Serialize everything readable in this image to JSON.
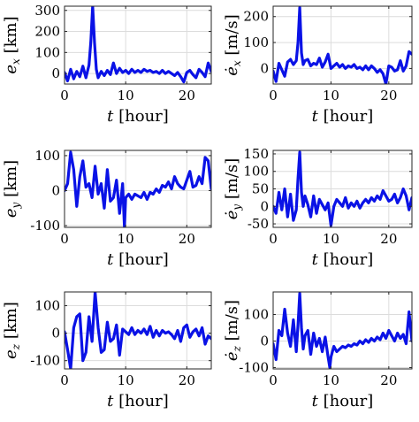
{
  "figure": {
    "line_color": "#0a12e6",
    "panels": [
      {
        "id": "ex",
        "ylabel_sym": "e",
        "ylabel_sub": "x",
        "ylabel_dot": false,
        "ylabel_unit": "[km]",
        "xlabel_sym": "t",
        "xlabel_unit": "[hour]"
      },
      {
        "id": "vx",
        "ylabel_sym": "e",
        "ylabel_sub": "x",
        "ylabel_dot": true,
        "ylabel_unit": "[m/s]",
        "xlabel_sym": "t",
        "xlabel_unit": "[hour]"
      },
      {
        "id": "ey",
        "ylabel_sym": "e",
        "ylabel_sub": "y",
        "ylabel_dot": false,
        "ylabel_unit": "[km]",
        "xlabel_sym": "t",
        "xlabel_unit": "[hour]"
      },
      {
        "id": "vy",
        "ylabel_sym": "e",
        "ylabel_sub": "y",
        "ylabel_dot": true,
        "ylabel_unit": "[m/s]",
        "xlabel_sym": "t",
        "xlabel_unit": "[hour]"
      },
      {
        "id": "ez",
        "ylabel_sym": "e",
        "ylabel_sub": "z",
        "ylabel_dot": false,
        "ylabel_unit": "[km]",
        "xlabel_sym": "t",
        "xlabel_unit": "[hour]"
      },
      {
        "id": "vz",
        "ylabel_sym": "e",
        "ylabel_sub": "z",
        "ylabel_dot": true,
        "ylabel_unit": "[m/s]",
        "xlabel_sym": "t",
        "xlabel_unit": "[hour]"
      }
    ]
  },
  "chart_data": [
    {
      "type": "line",
      "xlabel": "t [hour]",
      "ylabel": "e_x [km]",
      "xlim": [
        0,
        24
      ],
      "ylim": [
        -50,
        320
      ],
      "xticks": [
        0,
        10,
        20
      ],
      "yticks": [
        0,
        100,
        200,
        300
      ],
      "grid": true,
      "x": [
        0,
        0.5,
        1,
        1.5,
        2,
        2.5,
        3,
        3.5,
        4,
        4.3,
        4.6,
        4.9,
        5.2,
        5.5,
        6,
        6.5,
        7,
        7.5,
        8,
        8.5,
        9,
        9.5,
        10,
        10.5,
        11,
        11.5,
        12,
        12.5,
        13,
        13.5,
        14,
        14.5,
        15,
        15.5,
        16,
        16.5,
        17,
        17.5,
        18,
        18.5,
        19,
        19.5,
        20,
        20.5,
        21,
        21.5,
        22,
        22.5,
        23,
        23.5,
        24
      ],
      "y": [
        5,
        -35,
        20,
        -25,
        10,
        -15,
        35,
        -20,
        40,
        150,
        320,
        150,
        20,
        -20,
        10,
        -10,
        15,
        -5,
        50,
        0,
        25,
        5,
        15,
        0,
        20,
        5,
        15,
        5,
        20,
        10,
        15,
        5,
        10,
        0,
        15,
        0,
        10,
        0,
        -10,
        5,
        -15,
        -40,
        5,
        15,
        -5,
        -20,
        20,
        5,
        -15,
        50,
        10
      ]
    },
    {
      "type": "line",
      "xlabel": "t [hour]",
      "ylabel": "ė_x [m/s]",
      "xlim": [
        0,
        24
      ],
      "ylim": [
        -60,
        240
      ],
      "xticks": [
        0,
        10,
        20
      ],
      "yticks": [
        0,
        100,
        200
      ],
      "grid": true,
      "x": [
        0,
        0.5,
        1,
        1.5,
        2,
        2.5,
        3,
        3.5,
        4,
        4.3,
        4.6,
        4.9,
        5.2,
        5.5,
        6,
        6.5,
        7,
        7.5,
        8,
        8.5,
        9,
        9.5,
        10,
        10.5,
        11,
        11.5,
        12,
        12.5,
        13,
        13.5,
        14,
        14.5,
        15,
        15.5,
        16,
        16.5,
        17,
        17.5,
        18,
        18.5,
        19,
        19.5,
        20,
        20.5,
        21,
        21.5,
        22,
        22.5,
        23,
        23.5,
        24
      ],
      "y": [
        -10,
        -50,
        20,
        -5,
        -30,
        25,
        35,
        15,
        30,
        100,
        235,
        60,
        15,
        30,
        35,
        10,
        20,
        15,
        40,
        5,
        25,
        55,
        0,
        10,
        20,
        5,
        15,
        0,
        10,
        5,
        15,
        0,
        5,
        -5,
        10,
        -5,
        10,
        0,
        -15,
        -5,
        -20,
        -60,
        10,
        5,
        -10,
        -5,
        30,
        -10,
        10,
        65,
        55
      ]
    },
    {
      "type": "line",
      "xlabel": "t [hour]",
      "ylabel": "e_y [km]",
      "xlim": [
        0,
        24
      ],
      "ylim": [
        -105,
        115
      ],
      "xticks": [
        0,
        10,
        20
      ],
      "yticks": [
        -100,
        0,
        100
      ],
      "grid": true,
      "x": [
        0,
        0.5,
        1,
        1.5,
        2,
        2.5,
        3,
        3.5,
        4,
        4.5,
        5,
        5.5,
        6,
        6.5,
        7,
        7.5,
        8,
        8.5,
        9,
        9.5,
        9.8,
        10,
        10.5,
        11,
        11.5,
        12,
        12.5,
        13,
        13.5,
        14,
        14.5,
        15,
        15.5,
        16,
        16.5,
        17,
        17.5,
        18,
        18.5,
        19,
        19.5,
        20,
        20.5,
        21,
        21.5,
        22,
        22.5,
        23,
        23.5,
        24
      ],
      "y": [
        0,
        20,
        110,
        60,
        -45,
        40,
        85,
        10,
        20,
        -20,
        70,
        -10,
        20,
        -50,
        60,
        -30,
        -20,
        30,
        -65,
        20,
        -105,
        -20,
        -10,
        -25,
        -10,
        -15,
        -20,
        -5,
        -25,
        -5,
        -10,
        5,
        -5,
        15,
        10,
        25,
        5,
        40,
        20,
        10,
        5,
        30,
        55,
        10,
        15,
        40,
        20,
        95,
        85,
        5
      ]
    },
    {
      "type": "line",
      "xlabel": "t [hour]",
      "ylabel": "ė_y [m/s]",
      "xlim": [
        0,
        24
      ],
      "ylim": [
        -60,
        160
      ],
      "xticks": [
        0,
        10,
        20
      ],
      "yticks": [
        -50,
        0,
        50,
        100,
        150
      ],
      "grid": true,
      "x": [
        0,
        0.5,
        1,
        1.5,
        2,
        2.5,
        3,
        3.5,
        4,
        4.3,
        4.6,
        4.9,
        5.2,
        5.5,
        6,
        6.5,
        7,
        7.5,
        8,
        8.5,
        9,
        9.5,
        10,
        10.5,
        11,
        11.5,
        12,
        12.5,
        13,
        13.5,
        14,
        14.5,
        15,
        15.5,
        16,
        16.5,
        17,
        17.5,
        18,
        18.5,
        19,
        19.5,
        20,
        20.5,
        21,
        21.5,
        22,
        22.5,
        23,
        23.5,
        24
      ],
      "y": [
        0,
        -20,
        40,
        -10,
        50,
        -30,
        35,
        -40,
        -10,
        80,
        155,
        40,
        0,
        30,
        5,
        -30,
        30,
        -20,
        20,
        5,
        -10,
        10,
        -55,
        0,
        20,
        10,
        0,
        25,
        -5,
        10,
        0,
        15,
        -5,
        10,
        20,
        10,
        25,
        15,
        30,
        20,
        45,
        30,
        15,
        20,
        35,
        10,
        25,
        50,
        30,
        -10,
        25
      ]
    },
    {
      "type": "line",
      "xlabel": "t [hour]",
      "ylabel": "e_z [km]",
      "xlim": [
        0,
        24
      ],
      "ylim": [
        -130,
        150
      ],
      "xticks": [
        0,
        10,
        20
      ],
      "yticks": [
        -100,
        0,
        100
      ],
      "grid": true,
      "x": [
        0,
        0.5,
        1,
        1.5,
        2,
        2.5,
        3,
        3.5,
        4,
        4.5,
        5,
        5.5,
        6,
        6.5,
        7,
        7.5,
        8,
        8.5,
        9,
        9.5,
        10,
        10.5,
        11,
        11.5,
        12,
        12.5,
        13,
        13.5,
        14,
        14.5,
        15,
        15.5,
        16,
        16.5,
        17,
        17.5,
        18,
        18.5,
        19,
        19.5,
        20,
        20.5,
        21,
        21.5,
        22,
        22.5,
        23,
        23.5,
        24
      ],
      "y": [
        5,
        -60,
        -130,
        20,
        60,
        70,
        -100,
        -70,
        60,
        -30,
        150,
        20,
        -70,
        -60,
        40,
        -30,
        -20,
        30,
        -80,
        15,
        5,
        -5,
        20,
        -5,
        10,
        0,
        15,
        -5,
        25,
        -15,
        10,
        -10,
        10,
        0,
        5,
        -5,
        -20,
        10,
        -30,
        20,
        30,
        -15,
        5,
        15,
        -10,
        20,
        -40,
        -10,
        -20
      ]
    },
    {
      "type": "line",
      "xlabel": "t [hour]",
      "ylabel": "ė_z [m/s]",
      "xlim": [
        0,
        24
      ],
      "ylim": [
        -105,
        185
      ],
      "xticks": [
        0,
        10,
        20
      ],
      "yticks": [
        -100,
        0,
        100
      ],
      "grid": true,
      "x": [
        0,
        0.5,
        1,
        1.5,
        2,
        2.5,
        3,
        3.5,
        4,
        4.3,
        4.6,
        4.9,
        5.2,
        5.5,
        6,
        6.5,
        7,
        7.5,
        8,
        8.5,
        9,
        9.5,
        9.8,
        10,
        10.5,
        11,
        11.5,
        12,
        12.5,
        13,
        13.5,
        14,
        14.5,
        15,
        15.5,
        16,
        16.5,
        17,
        17.5,
        18,
        18.5,
        19,
        19.5,
        20,
        20.5,
        21,
        21.5,
        22,
        22.5,
        23,
        23.5,
        24
      ],
      "y": [
        -10,
        -70,
        40,
        20,
        120,
        30,
        -20,
        80,
        -40,
        60,
        180,
        50,
        -30,
        20,
        40,
        -50,
        30,
        -20,
        10,
        -40,
        15,
        -60,
        -100,
        -60,
        -20,
        -40,
        -30,
        -20,
        -25,
        -15,
        -20,
        -10,
        -15,
        0,
        -10,
        5,
        -5,
        10,
        0,
        15,
        5,
        30,
        10,
        40,
        20,
        0,
        30,
        10,
        25,
        -10,
        110,
        0
      ]
    }
  ]
}
